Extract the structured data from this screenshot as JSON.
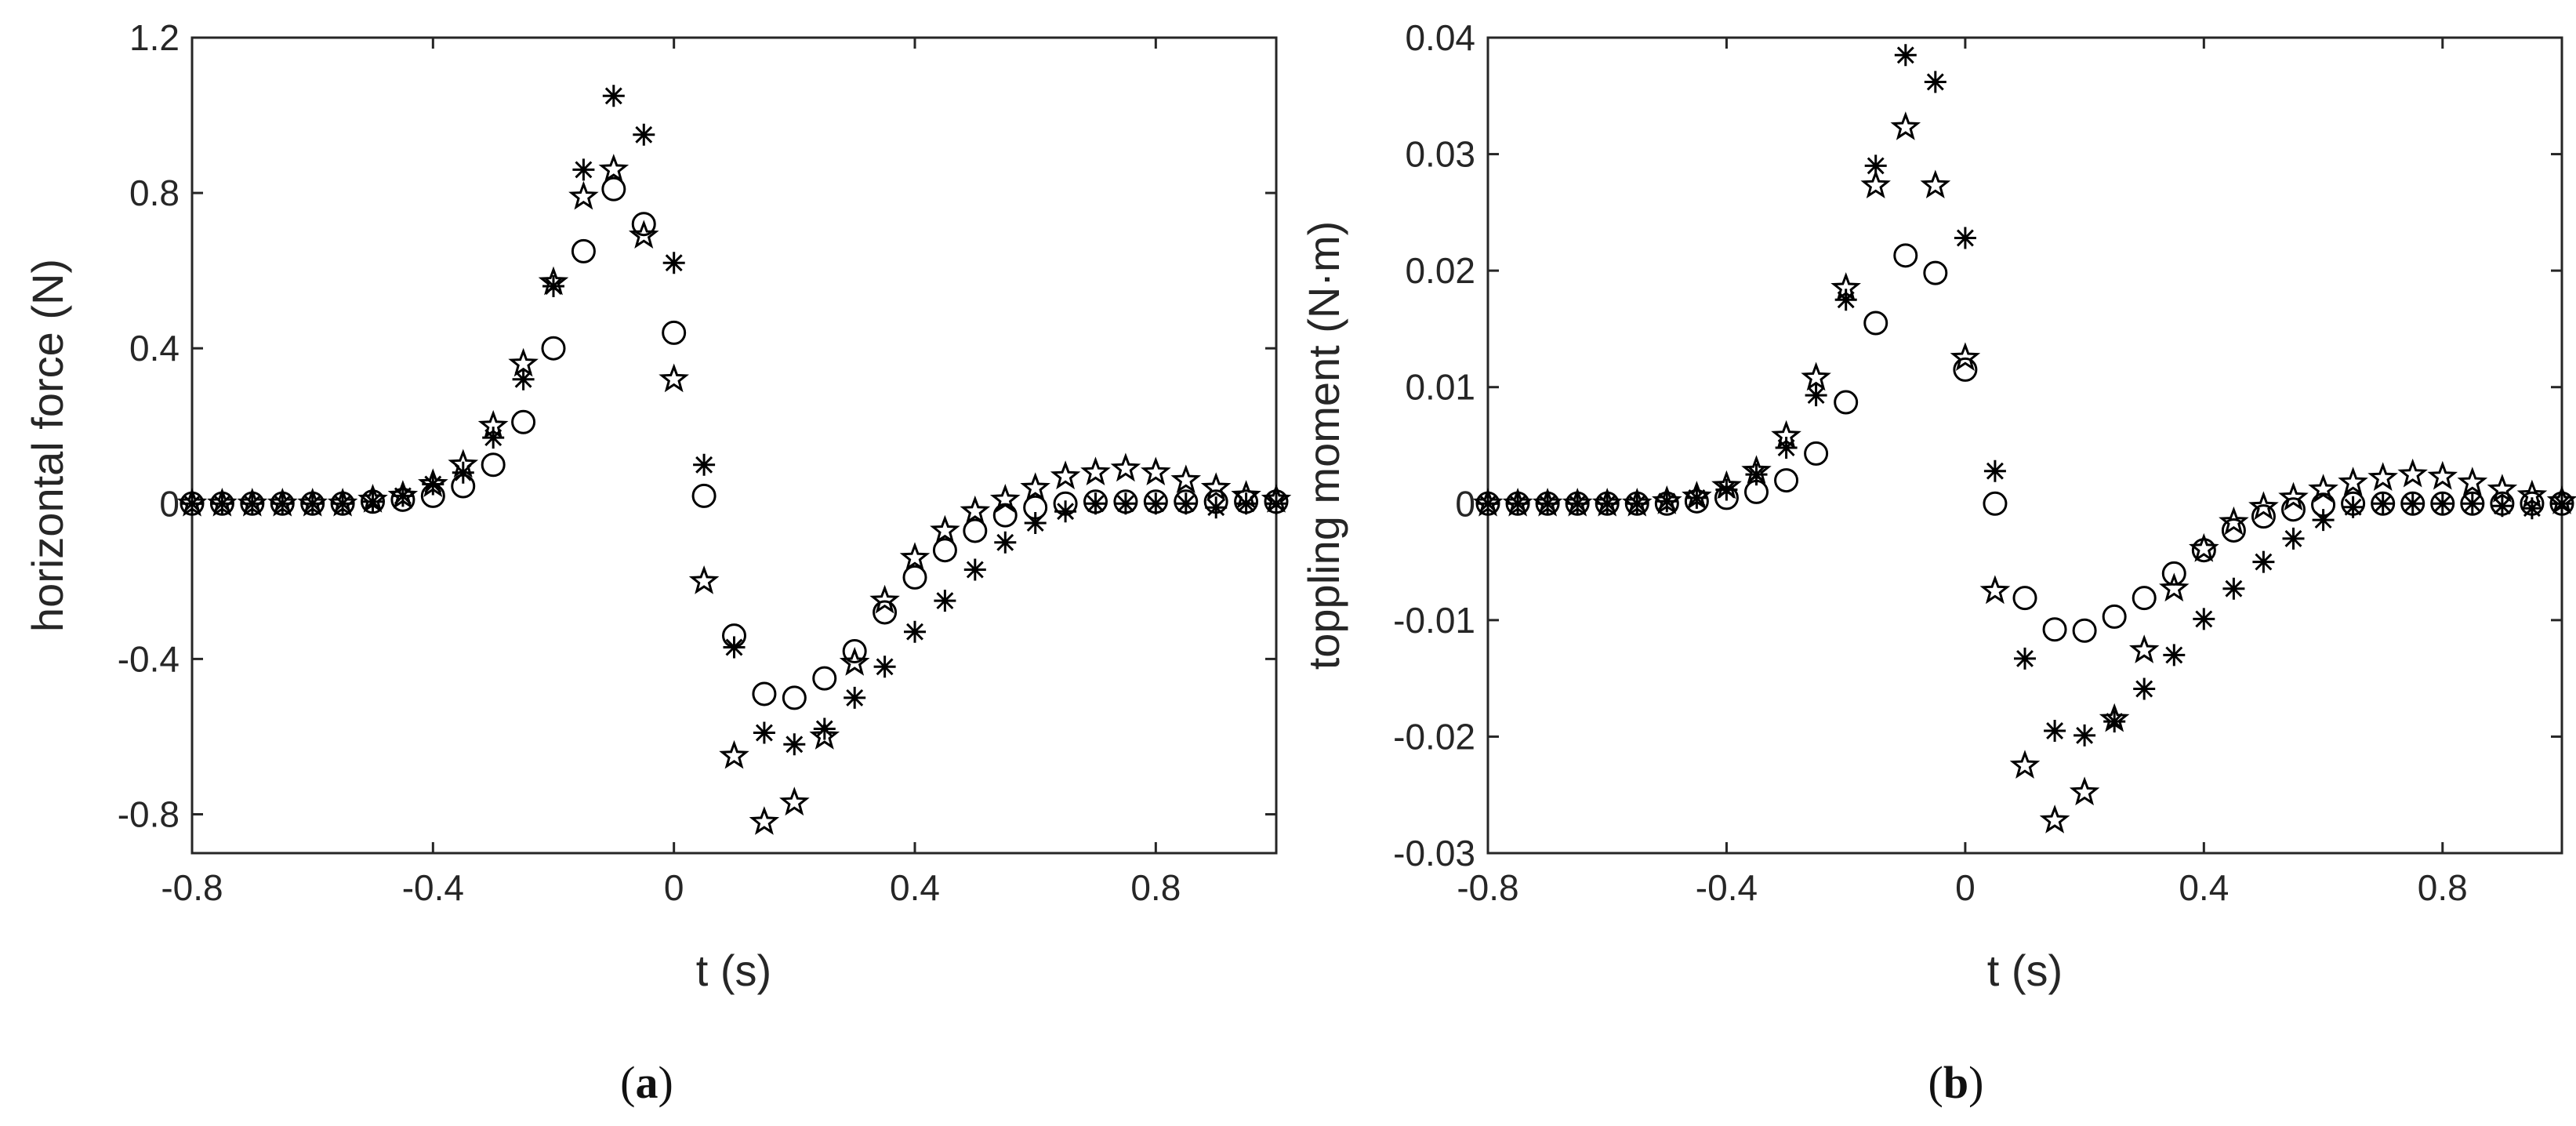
{
  "panels": [
    {
      "caption_letter": "a",
      "chart_data": {
        "type": "scatter",
        "xlabel": "t (s)",
        "ylabel": "horizontal force (N)",
        "xlim": [
          -0.8,
          1.0
        ],
        "ylim": [
          -0.9,
          1.2
        ],
        "x_ticks": [
          -0.8,
          -0.4,
          0,
          0.4,
          0.8
        ],
        "x_tick_labels": [
          "-0.8",
          "-0.4",
          "0",
          "0.4",
          "0.8"
        ],
        "y_ticks": [
          -0.8,
          -0.4,
          0,
          0.4,
          0.8,
          1.2
        ],
        "y_tick_labels": [
          "-0.8",
          "-0.4",
          "0",
          "0.4",
          "0.8",
          "1.2"
        ],
        "x": [
          -0.8,
          -0.75,
          -0.7,
          -0.65,
          -0.6,
          -0.55,
          -0.5,
          -0.45,
          -0.4,
          -0.35,
          -0.3,
          -0.25,
          -0.2,
          -0.15,
          -0.1,
          -0.05,
          0,
          0.05,
          0.1,
          0.15,
          0.2,
          0.25,
          0.3,
          0.35,
          0.4,
          0.45,
          0.5,
          0.55,
          0.6,
          0.65,
          0.7,
          0.75,
          0.8,
          0.85,
          0.9,
          0.95,
          1.0
        ],
        "series": [
          {
            "name": "circle",
            "marker": "circle",
            "values": [
              0,
              0,
              0,
              0,
              0,
              0,
              0.005,
              0.01,
              0.02,
              0.045,
              0.1,
              0.21,
              0.4,
              0.65,
              0.81,
              0.72,
              0.44,
              0.02,
              -0.34,
              -0.49,
              -0.5,
              -0.45,
              -0.38,
              -0.28,
              -0.19,
              -0.12,
              -0.07,
              -0.03,
              -0.01,
              0,
              0.005,
              0.005,
              0.005,
              0.005,
              0.005,
              0.005,
              0.005
            ]
          },
          {
            "name": "asterisk",
            "marker": "asterisk",
            "values": [
              0,
              0,
              0,
              0,
              0,
              0,
              0.005,
              0.02,
              0.05,
              0.08,
              0.17,
              0.32,
              0.56,
              0.86,
              1.05,
              0.95,
              0.62,
              0.1,
              -0.37,
              -0.59,
              -0.62,
              -0.58,
              -0.5,
              -0.42,
              -0.33,
              -0.25,
              -0.17,
              -0.1,
              -0.05,
              -0.02,
              0,
              0,
              0,
              0,
              -0.01,
              0,
              0
            ]
          },
          {
            "name": "pentagram",
            "marker": "pentagram",
            "values": [
              0,
              0,
              0,
              0,
              0,
              0,
              0.01,
              0.02,
              0.05,
              0.1,
              0.2,
              0.36,
              0.57,
              0.79,
              0.86,
              0.69,
              0.32,
              -0.2,
              -0.65,
              -0.82,
              -0.77,
              -0.6,
              -0.41,
              -0.25,
              -0.14,
              -0.07,
              -0.02,
              0.01,
              0.04,
              0.07,
              0.08,
              0.09,
              0.08,
              0.06,
              0.04,
              0.02,
              0.01
            ]
          }
        ]
      }
    },
    {
      "caption_letter": "b",
      "chart_data": {
        "type": "scatter",
        "xlabel": "t (s)",
        "ylabel": "toppling moment (N·m)",
        "xlim": [
          -0.8,
          1.0
        ],
        "ylim": [
          -0.03,
          0.04
        ],
        "x_ticks": [
          -0.8,
          -0.4,
          0,
          0.4,
          0.8
        ],
        "x_tick_labels": [
          "-0.8",
          "-0.4",
          "0",
          "0.4",
          "0.8"
        ],
        "y_ticks": [
          -0.03,
          -0.02,
          -0.01,
          0,
          0.01,
          0.02,
          0.03,
          0.04
        ],
        "y_tick_labels": [
          "-0.03",
          "-0.02",
          "-0.01",
          "0",
          "0.01",
          "0.02",
          "0.03",
          "0.04"
        ],
        "x": [
          -0.8,
          -0.75,
          -0.7,
          -0.65,
          -0.6,
          -0.55,
          -0.5,
          -0.45,
          -0.4,
          -0.35,
          -0.3,
          -0.25,
          -0.2,
          -0.15,
          -0.1,
          -0.05,
          0,
          0.05,
          0.1,
          0.15,
          0.2,
          0.25,
          0.3,
          0.35,
          0.4,
          0.45,
          0.5,
          0.55,
          0.6,
          0.65,
          0.7,
          0.75,
          0.8,
          0.85,
          0.9,
          0.95,
          1.0
        ],
        "series": [
          {
            "name": "circle",
            "marker": "circle",
            "values": [
              0,
              0,
              0,
              0,
              0,
              0,
              0,
              0.0002,
              0.0005,
              0.001,
              0.002,
              0.0043,
              0.0087,
              0.0155,
              0.0213,
              0.0198,
              0.0115,
              0,
              -0.0081,
              -0.0108,
              -0.0109,
              -0.0097,
              -0.0081,
              -0.006,
              -0.004,
              -0.0023,
              -0.0011,
              -0.0005,
              -0.0001,
              0,
              0,
              0,
              0,
              0,
              0,
              0,
              0
            ]
          },
          {
            "name": "asterisk",
            "marker": "asterisk",
            "values": [
              0,
              0,
              0,
              0,
              0,
              0,
              0.0002,
              0.0005,
              0.0012,
              0.0025,
              0.0048,
              0.0093,
              0.0175,
              0.029,
              0.0385,
              0.0362,
              0.0228,
              0.0028,
              -0.0133,
              -0.0195,
              -0.0199,
              -0.0187,
              -0.0159,
              -0.013,
              -0.0099,
              -0.0073,
              -0.005,
              -0.003,
              -0.0014,
              -0.0003,
              0,
              0,
              0,
              0,
              -0.0002,
              -0.0004,
              0
            ]
          },
          {
            "name": "pentagram",
            "marker": "pentagram",
            "values": [
              0,
              0,
              0,
              0,
              0,
              0,
              0.0002,
              0.0006,
              0.0015,
              0.0028,
              0.0058,
              0.0108,
              0.0185,
              0.0273,
              0.0323,
              0.0273,
              0.0125,
              -0.0075,
              -0.0225,
              -0.0272,
              -0.0248,
              -0.0185,
              -0.0126,
              -0.0073,
              -0.0039,
              -0.0016,
              -0.0003,
              0.0005,
              0.0012,
              0.0018,
              0.0022,
              0.0025,
              0.0023,
              0.0018,
              0.0012,
              0.0007,
              0.0002
            ]
          }
        ]
      }
    }
  ]
}
